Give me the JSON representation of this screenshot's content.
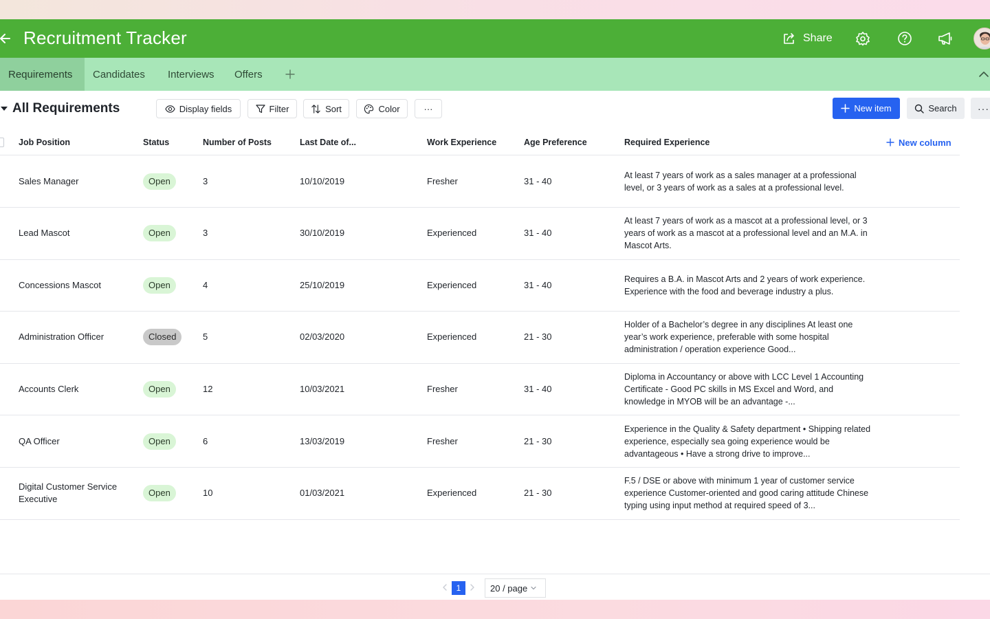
{
  "header": {
    "title": "Recruitment Tracker",
    "share_label": "Share",
    "icons": [
      "back-arrow-icon",
      "share-icon",
      "settings-icon",
      "help-icon",
      "megaphone-icon",
      "avatar"
    ]
  },
  "tabs": [
    {
      "label": "Requirements",
      "active": true
    },
    {
      "label": "Candidates"
    },
    {
      "label": "Interviews"
    },
    {
      "label": "Offers"
    }
  ],
  "toolbar": {
    "view_title": "All Requirements",
    "display_fields": "Display fields",
    "filter": "Filter",
    "sort": "Sort",
    "color": "Color",
    "more": "···",
    "new_item": "New item",
    "search": "Search"
  },
  "table": {
    "columns": [
      "Job Position",
      "Status",
      "Number of Posts",
      "Last Date of...",
      "Work Experience",
      "Age Preference",
      "Required Experience"
    ],
    "new_column": "New column",
    "rows": [
      {
        "job": "Sales Manager",
        "status": "Open",
        "posts": "3",
        "date": "10/10/2019",
        "exp": "Fresher",
        "age": "31 - 40",
        "req": "At least 7 years of work as a sales manager at a professional level, or 3 years of work as a sales at a professional level."
      },
      {
        "job": "Lead Mascot",
        "status": "Open",
        "posts": "3",
        "date": "30/10/2019",
        "exp": "Experienced",
        "age": "31 - 40",
        "req": "At least 7 years of work as a mascot at a professional level, or 3 years of work as a mascot at a professional level and an M.A. in Mascot Arts."
      },
      {
        "job": "Concessions Mascot",
        "status": "Open",
        "posts": "4",
        "date": "25/10/2019",
        "exp": "Experienced",
        "age": "31 - 40",
        "req": "Requires a B.A. in Mascot Arts and 2 years of work experience. Experience with the food and beverage industry a plus."
      },
      {
        "job": "Administration Officer",
        "status": "Closed",
        "posts": "5",
        "date": "02/03/2020",
        "exp": "Experienced",
        "age": "21 - 30",
        "req": "Holder of a Bachelor’s degree in any disciplines At least one year’s work experience, preferable with some hospital administration / operation experience Good..."
      },
      {
        "job": "Accounts Clerk",
        "status": "Open",
        "posts": "12",
        "date": "10/03/2021",
        "exp": "Fresher",
        "age": "31 - 40",
        "req": "Diploma in Accountancy or above with LCC Level 1 Accounting Certificate - Good PC skills in MS Excel and Word, and knowledge in MYOB will be an advantage -..."
      },
      {
        "job": "QA Officer",
        "status": "Open",
        "posts": "6",
        "date": "13/03/2019",
        "exp": "Fresher",
        "age": "21 - 30",
        "req": "Experience in the Quality & Safety department • Shipping related experience, especially sea going experience would be advantageous • Have a strong drive to improve..."
      },
      {
        "job": "Digital Customer Service Executive",
        "status": "Open",
        "posts": "10",
        "date": "01/03/2021",
        "exp": "Experienced",
        "age": "21 - 30",
        "req": "F.5 / DSE or above with minimum 1 year of customer service experience Customer-oriented and good caring attitude Chinese typing using input method at required speed of 3..."
      }
    ]
  },
  "pagination": {
    "current_page": "1",
    "page_size": "20 / page"
  },
  "colors": {
    "header_bg": "#4caf37",
    "tabbar_bg": "#a8e6b8",
    "active_tab_bg": "#8fd09d",
    "primary": "#2662f0",
    "open_pill": "#d9f5d6",
    "closed_pill": "#c9c9c9"
  }
}
